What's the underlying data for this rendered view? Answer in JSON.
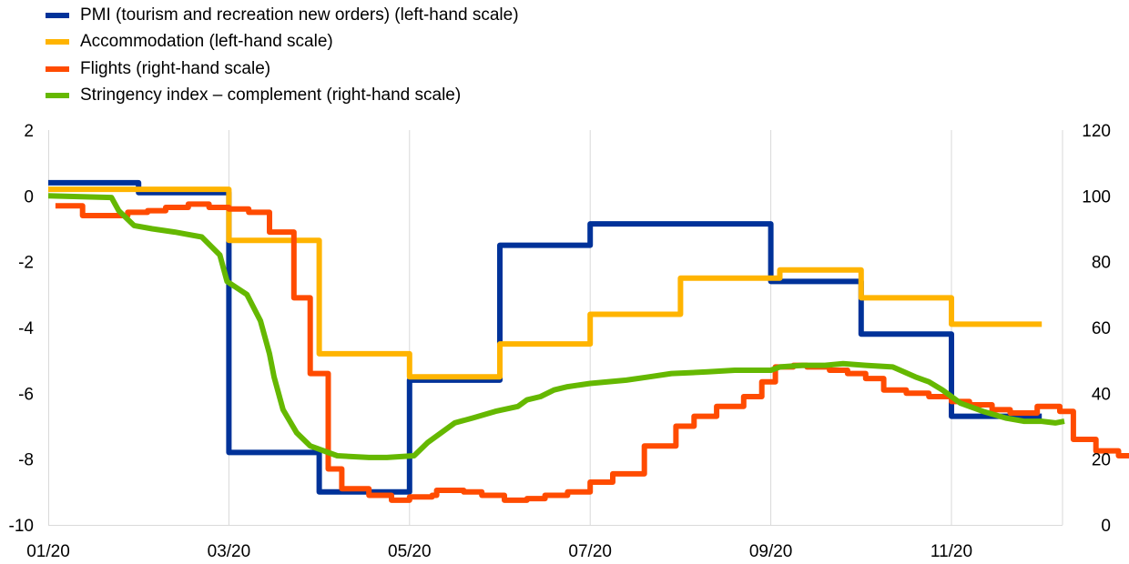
{
  "chart_data": {
    "type": "line",
    "title": "",
    "xlabel": "",
    "ylabel": "",
    "x_tick_labels": [
      "01/20",
      "03/20",
      "05/20",
      "07/20",
      "09/20",
      "11/20"
    ],
    "y_left": {
      "ylim": [
        -10,
        2
      ],
      "ticks": [
        "2",
        "0",
        "-2",
        "-4",
        "-6",
        "-8",
        "-10"
      ]
    },
    "y_right": {
      "ylim": [
        0,
        120
      ],
      "ticks": [
        "120",
        "100",
        "80",
        "60",
        "40",
        "20",
        "0"
      ]
    },
    "grid": "vertical",
    "legend_position": "top-left",
    "series": [
      {
        "name": "PMI (tourism and recreation new orders) (left-hand scale)",
        "color": "#003299",
        "axis": "left",
        "step": true,
        "points": [
          [
            0.0,
            0.4
          ],
          [
            1.0,
            0.1
          ],
          [
            2.0,
            -7.8
          ],
          [
            3.0,
            -9.0
          ],
          [
            4.0,
            -5.6
          ],
          [
            5.0,
            -1.5
          ],
          [
            6.0,
            -0.85
          ],
          [
            7.0,
            -0.85
          ],
          [
            8.0,
            -2.6
          ],
          [
            9.0,
            -4.2
          ],
          [
            10.0,
            -6.7
          ],
          [
            11.0,
            -6.7
          ]
        ]
      },
      {
        "name": "Accommodation (left-hand scale)",
        "color": "#ffb400",
        "axis": "left",
        "step": true,
        "points": [
          [
            0.0,
            0.2
          ],
          [
            1.0,
            0.2
          ],
          [
            2.0,
            -1.35
          ],
          [
            3.0,
            -4.8
          ],
          [
            4.0,
            -5.5
          ],
          [
            5.0,
            -4.5
          ],
          [
            6.0,
            -3.6
          ],
          [
            7.0,
            -2.5
          ],
          [
            8.1,
            -2.25
          ],
          [
            9.0,
            -3.1
          ],
          [
            10.0,
            -3.9
          ],
          [
            11.0,
            -3.9
          ]
        ]
      },
      {
        "name": "Flights (right-hand scale)",
        "color": "#ff4b00",
        "axis": "right",
        "step": true,
        "points": [
          [
            0.08,
            97
          ],
          [
            0.2,
            97
          ],
          [
            0.38,
            94
          ],
          [
            0.7,
            94
          ],
          [
            0.88,
            95
          ],
          [
            1.1,
            95.5
          ],
          [
            1.3,
            96.5
          ],
          [
            1.55,
            97.5
          ],
          [
            1.78,
            96.5
          ],
          [
            2.0,
            96
          ],
          [
            2.22,
            95
          ],
          [
            2.45,
            89
          ],
          [
            2.72,
            69
          ],
          [
            2.9,
            46
          ],
          [
            3.1,
            17
          ],
          [
            3.25,
            11
          ],
          [
            3.55,
            9
          ],
          [
            3.8,
            7.5
          ],
          [
            4.0,
            8.5
          ],
          [
            4.25,
            9
          ],
          [
            4.3,
            10.5
          ],
          [
            4.6,
            10
          ],
          [
            4.8,
            9
          ],
          [
            5.05,
            7.5
          ],
          [
            5.3,
            8
          ],
          [
            5.5,
            9
          ],
          [
            5.75,
            10
          ],
          [
            6.0,
            13
          ],
          [
            6.25,
            15.5
          ],
          [
            6.6,
            24
          ],
          [
            6.95,
            30
          ],
          [
            7.15,
            33
          ],
          [
            7.4,
            36
          ],
          [
            7.7,
            39
          ],
          [
            7.9,
            43.5
          ],
          [
            8.05,
            48
          ],
          [
            8.25,
            48.5
          ],
          [
            8.4,
            48
          ],
          [
            8.65,
            47
          ],
          [
            8.85,
            46
          ],
          [
            9.05,
            44.5
          ],
          [
            9.25,
            41
          ],
          [
            9.5,
            40
          ],
          [
            9.75,
            39
          ],
          [
            10.0,
            37.5
          ],
          [
            10.2,
            36.5
          ],
          [
            10.45,
            35
          ],
          [
            10.65,
            34
          ],
          [
            10.95,
            36
          ],
          [
            11.2,
            34.5
          ],
          [
            11.35,
            26
          ],
          [
            11.6,
            22.5
          ],
          [
            11.85,
            21
          ],
          [
            12.05,
            22
          ],
          [
            12.25,
            22.5
          ],
          [
            12.4,
            23.5
          ],
          [
            12.55,
            24
          ]
        ]
      },
      {
        "name": "Stringency index – complement (right-hand scale)",
        "color": "#65b800",
        "axis": "right",
        "step": false,
        "points": [
          [
            0.0,
            100
          ],
          [
            0.7,
            99.5
          ],
          [
            0.78,
            95.5
          ],
          [
            0.95,
            91
          ],
          [
            1.15,
            90
          ],
          [
            1.4,
            89
          ],
          [
            1.7,
            87.5
          ],
          [
            1.9,
            82
          ],
          [
            1.98,
            74
          ],
          [
            2.2,
            70
          ],
          [
            2.35,
            62
          ],
          [
            2.45,
            52
          ],
          [
            2.5,
            45
          ],
          [
            2.6,
            35
          ],
          [
            2.75,
            28
          ],
          [
            2.9,
            24
          ],
          [
            3.2,
            21
          ],
          [
            3.55,
            20.5
          ],
          [
            3.75,
            20.5
          ],
          [
            4.05,
            21
          ],
          [
            4.2,
            25
          ],
          [
            4.5,
            31
          ],
          [
            4.7,
            32.5
          ],
          [
            4.95,
            34.5
          ],
          [
            5.2,
            36
          ],
          [
            5.3,
            38
          ],
          [
            5.45,
            39
          ],
          [
            5.6,
            41
          ],
          [
            5.75,
            42
          ],
          [
            6.0,
            43
          ],
          [
            6.4,
            44
          ],
          [
            6.65,
            45
          ],
          [
            6.9,
            46
          ],
          [
            7.3,
            46.5
          ],
          [
            7.6,
            47
          ],
          [
            8.0,
            47
          ],
          [
            8.1,
            48
          ],
          [
            8.35,
            48.5
          ],
          [
            8.6,
            48.5
          ],
          [
            8.8,
            49
          ],
          [
            9.05,
            48.5
          ],
          [
            9.35,
            48
          ],
          [
            9.6,
            45
          ],
          [
            9.75,
            43.5
          ],
          [
            9.9,
            41
          ],
          [
            10.1,
            37
          ],
          [
            10.35,
            34.5
          ],
          [
            10.6,
            32.5
          ],
          [
            10.8,
            31.5
          ],
          [
            11.0,
            31.5
          ],
          [
            11.15,
            31
          ],
          [
            11.25,
            31.5
          ]
        ]
      }
    ]
  }
}
